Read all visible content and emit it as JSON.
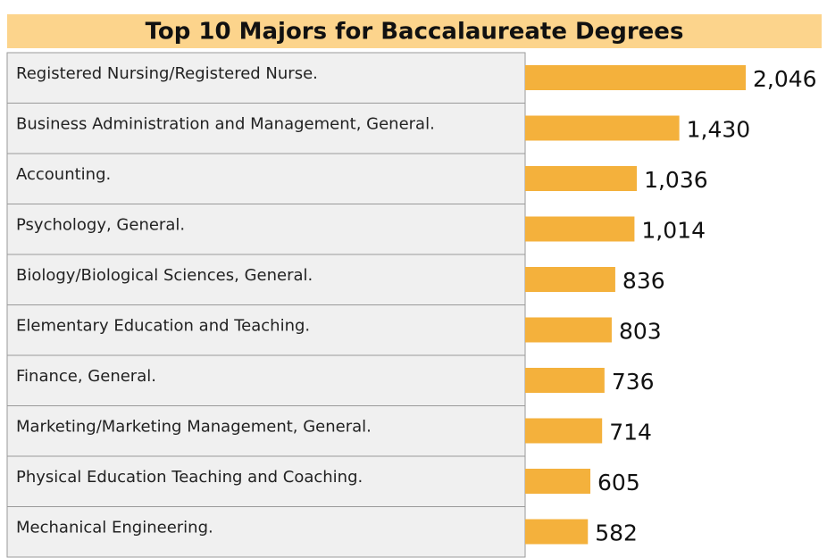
{
  "chart_data": {
    "type": "bar",
    "orientation": "horizontal",
    "title": "Top 10 Majors for Baccalaureate Degrees",
    "categories": [
      "Registered Nursing/Registered Nurse.",
      "Business Administration and Management, General.",
      "Accounting.",
      "Psychology, General.",
      "Biology/Biological Sciences, General.",
      "Elementary Education and Teaching.",
      "Finance, General.",
      "Marketing/Marketing Management, General.",
      "Physical Education Teaching and Coaching.",
      "Mechanical Engineering."
    ],
    "values": [
      2046,
      1430,
      1036,
      1014,
      836,
      803,
      736,
      714,
      605,
      582
    ],
    "value_labels": [
      "2,046",
      "1,430",
      "1,036",
      "1,014",
      "836",
      "803",
      "736",
      "714",
      "605",
      "582"
    ],
    "color": "#f4b13c"
  }
}
